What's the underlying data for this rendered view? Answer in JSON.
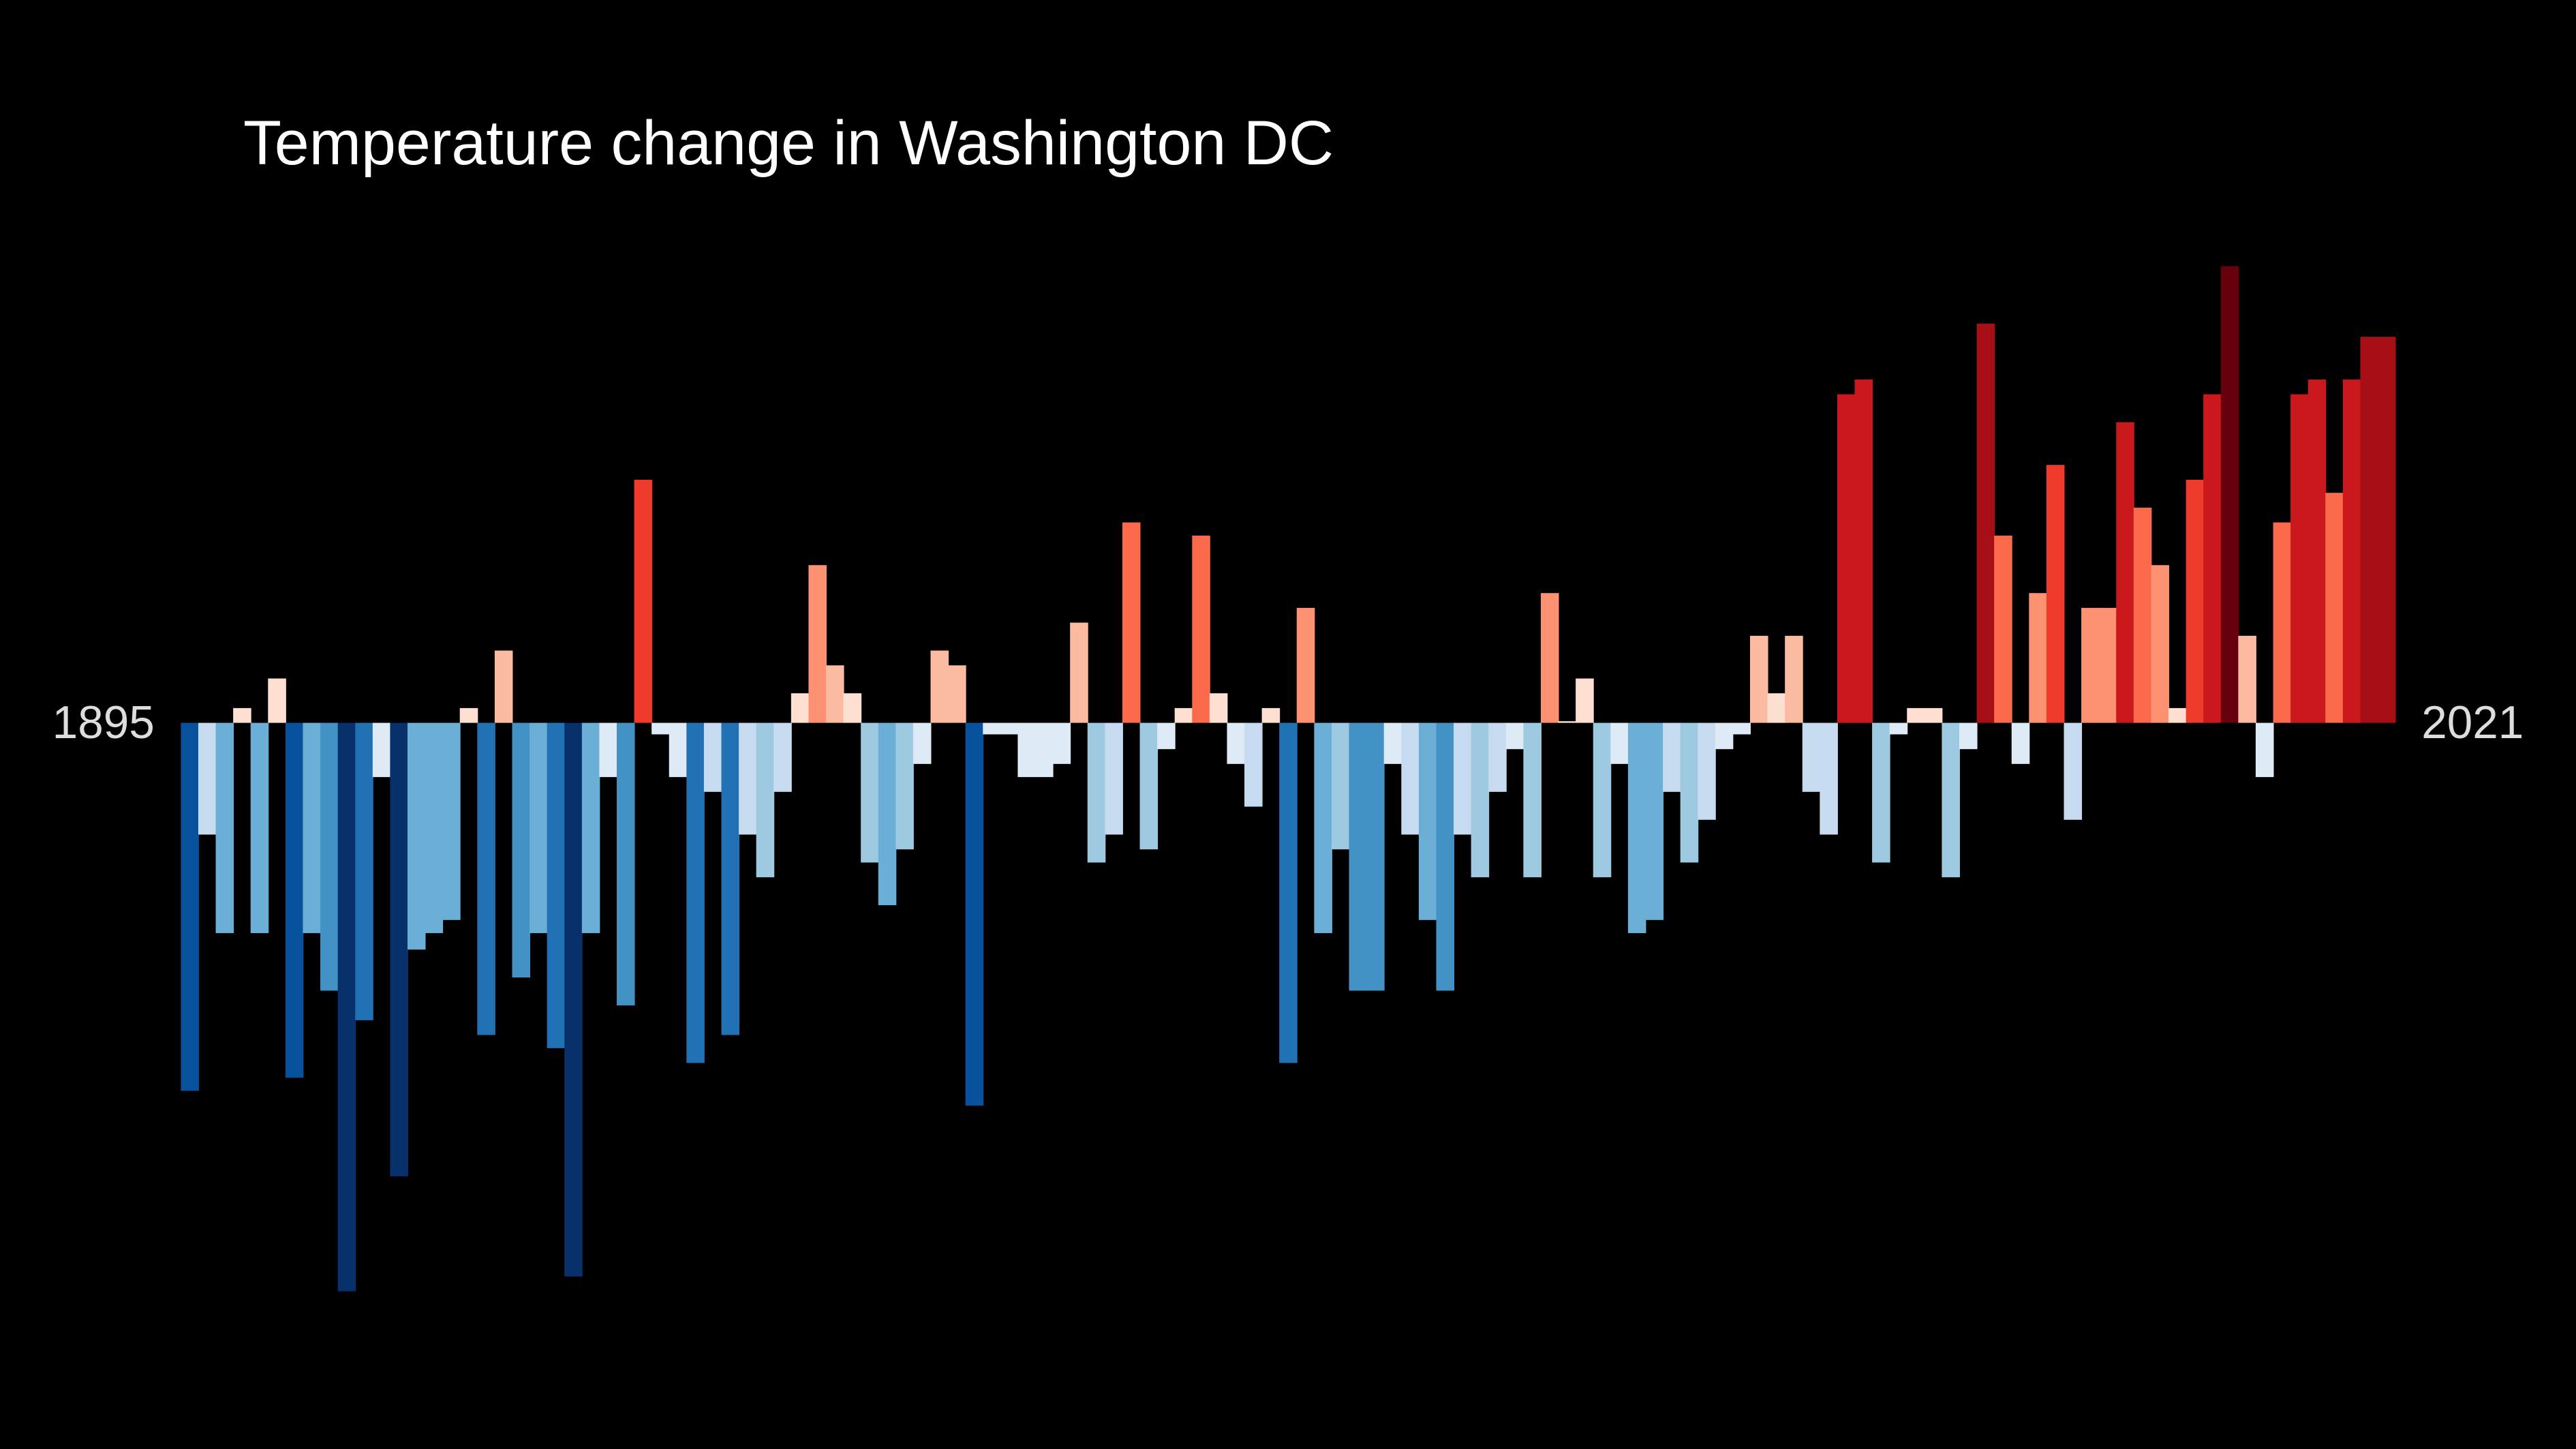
{
  "chart_data": {
    "type": "bar",
    "title": "Temperature change in Washington DC",
    "categories": [
      "1895",
      null,
      null,
      null,
      null,
      null,
      null,
      null,
      null,
      null,
      null,
      null,
      null,
      null,
      null,
      null,
      null,
      null,
      null,
      null,
      null,
      null,
      null,
      null,
      null,
      null,
      null,
      null,
      null,
      null,
      null,
      null,
      null,
      null,
      null,
      null,
      null,
      null,
      null,
      null,
      null,
      null,
      null,
      null,
      null,
      null,
      null,
      null,
      null,
      null,
      null,
      null,
      null,
      null,
      null,
      null,
      null,
      null,
      null,
      null,
      null,
      null,
      null,
      null,
      null,
      null,
      null,
      null,
      null,
      null,
      null,
      null,
      null,
      null,
      null,
      null,
      null,
      null,
      null,
      null,
      null,
      null,
      null,
      null,
      null,
      null,
      null,
      null,
      null,
      null,
      null,
      null,
      null,
      null,
      null,
      null,
      null,
      null,
      null,
      null,
      null,
      null,
      null,
      null,
      null,
      null,
      null,
      null,
      null,
      null,
      null,
      null,
      null,
      null,
      null,
      null,
      null,
      null,
      null,
      null,
      null,
      null,
      null,
      null,
      null,
      null,
      "2021"
    ],
    "values": [
      -2.24,
      -0.68,
      -1.28,
      0.09,
      -1.28,
      0.27,
      -2.16,
      -1.28,
      -1.63,
      -3.46,
      -1.81,
      -0.33,
      -2.76,
      -1.38,
      -1.28,
      -1.2,
      0.09,
      -1.9,
      0.44,
      -1.55,
      -1.28,
      -1.98,
      -3.37,
      -1.28,
      -0.33,
      -1.72,
      1.48,
      -0.07,
      -0.33,
      -2.07,
      -0.42,
      -1.9,
      -0.68,
      -0.94,
      -0.42,
      0.18,
      0.96,
      0.35,
      0.18,
      -0.85,
      -1.11,
      -0.77,
      -0.25,
      0.44,
      0.35,
      -2.33,
      -0.07,
      -0.07,
      -0.33,
      -0.33,
      -0.25,
      0.61,
      -0.85,
      -0.68,
      1.22,
      -0.77,
      -0.16,
      0.09,
      1.14,
      0.18,
      -0.25,
      -0.51,
      0.09,
      -2.07,
      0.7,
      -1.28,
      -0.77,
      -1.63,
      -1.63,
      -0.25,
      -0.68,
      -1.2,
      -1.63,
      -0.68,
      -0.94,
      -0.42,
      -0.16,
      -0.94,
      0.79,
      0.01,
      0.27,
      -0.94,
      -0.25,
      -1.28,
      -1.2,
      -0.42,
      -0.85,
      -0.59,
      -0.16,
      -0.07,
      0.53,
      0.18,
      0.53,
      -0.42,
      -0.68,
      2.0,
      2.09,
      -0.85,
      -0.07,
      0.09,
      0.09,
      -0.94,
      -0.16,
      2.43,
      1.14,
      -0.25,
      0.79,
      1.57,
      -0.59,
      0.7,
      0.7,
      1.83,
      1.31,
      0.96,
      0.09,
      1.48,
      2.0,
      2.78,
      0.53,
      -0.33,
      1.22,
      2.0,
      2.09,
      1.4,
      2.09,
      2.35,
      2.35
    ],
    "ylim": [
      -3.5,
      3.5
    ],
    "colormap": [
      "#08306b",
      "#08519c",
      "#2171b5",
      "#4292c6",
      "#6baed6",
      "#9ecae1",
      "#c6dbef",
      "#deebf7",
      "#fee0d2",
      "#fcbba1",
      "#fc9272",
      "#fb6a4a",
      "#ef3b2c",
      "#cb181d",
      "#a50f15",
      "#67000d"
    ],
    "color_range": [
      -2.8,
      2.8
    ],
    "background": "#000000"
  }
}
